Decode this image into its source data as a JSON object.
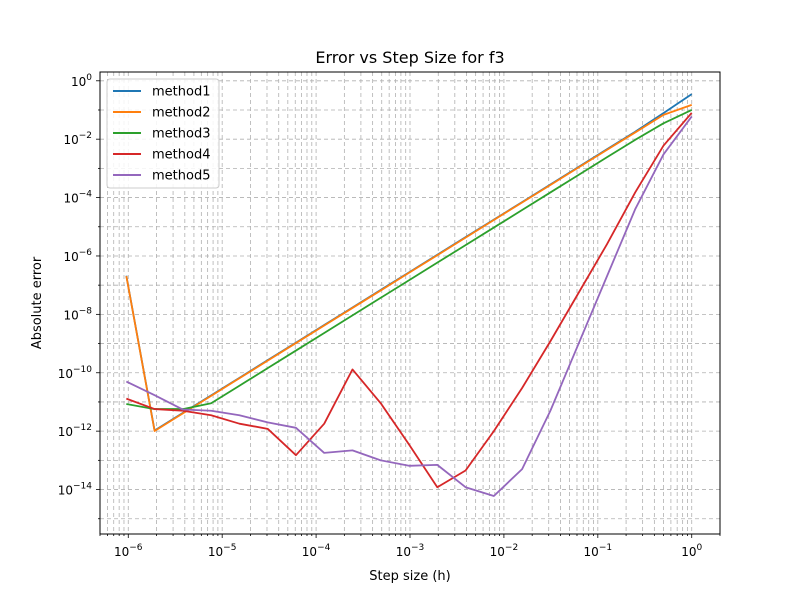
{
  "chart_data": {
    "type": "line",
    "title": "Error vs Step Size for f3",
    "xlabel": "Step size (h)",
    "ylabel": "Absolute error",
    "xscale": "log",
    "yscale": "log",
    "xlim": [
      5e-07,
      2
    ],
    "ylim": [
      3e-16,
      2
    ],
    "xticks": [
      {
        "value": 1e-06,
        "base": "10",
        "exp": "−6"
      },
      {
        "value": 1e-05,
        "base": "10",
        "exp": "−5"
      },
      {
        "value": 0.0001,
        "base": "10",
        "exp": "−4"
      },
      {
        "value": 0.001,
        "base": "10",
        "exp": "−3"
      },
      {
        "value": 0.01,
        "base": "10",
        "exp": "−2"
      },
      {
        "value": 0.1,
        "base": "10",
        "exp": "−1"
      },
      {
        "value": 1,
        "base": "10",
        "exp": "0"
      }
    ],
    "yticks": [
      {
        "value": 1e-14,
        "base": "10",
        "exp": "−14"
      },
      {
        "value": 1e-12,
        "base": "10",
        "exp": "−12"
      },
      {
        "value": 1e-10,
        "base": "10",
        "exp": "−10"
      },
      {
        "value": 1e-08,
        "base": "10",
        "exp": "−8"
      },
      {
        "value": 1e-06,
        "base": "10",
        "exp": "−6"
      },
      {
        "value": 0.0001,
        "base": "10",
        "exp": "−4"
      },
      {
        "value": 0.01,
        "base": "10",
        "exp": "−2"
      },
      {
        "value": 1,
        "base": "10",
        "exp": "0"
      }
    ],
    "grid": "both (major and minor), dashed",
    "legend_position": "upper-left",
    "x": [
      1,
      0.5,
      0.25,
      0.125,
      0.0625,
      0.03125,
      0.015625,
      0.0078125,
      0.00390625,
      0.001953125,
      0.0009765625,
      0.00048828125,
      0.000244140625,
      0.0001220703125,
      6.103515625e-05,
      3.0517578125e-05,
      1.52587890625e-05,
      7.62939453125e-06,
      3.814697265625e-06,
      1.9073486328125e-06,
      9.5367431640625e-07
    ],
    "series": [
      {
        "name": "method1",
        "color": "#1f77b4",
        "values": [
          0.35,
          0.078,
          0.018,
          0.0045,
          0.00112,
          0.00028,
          7e-05,
          1.75e-05,
          4.4e-06,
          1.1e-06,
          2.75e-07,
          6.9e-08,
          1.72e-08,
          4.3e-09,
          1.07e-09,
          2.7e-10,
          6.7e-11,
          1.68e-11,
          4.2e-12,
          1.05e-12,
          2.1e-07
        ]
      },
      {
        "name": "method2",
        "color": "#ff7f0e",
        "values": [
          0.15,
          0.068,
          0.017,
          0.0043,
          0.00108,
          0.00027,
          6.8e-05,
          1.7e-05,
          4.25e-06,
          1.06e-06,
          2.66e-07,
          6.6e-08,
          1.66e-08,
          4.15e-09,
          1.04e-09,
          2.6e-10,
          6.5e-11,
          1.62e-11,
          4.06e-12,
          1.01e-12,
          2.05e-07
        ]
      },
      {
        "name": "method3",
        "color": "#2ca02c",
        "values": [
          0.1,
          0.035,
          0.0095,
          0.0024,
          0.0006,
          0.00015,
          3.75e-05,
          9.4e-06,
          2.35e-06,
          5.9e-07,
          1.47e-07,
          3.7e-08,
          9.2e-09,
          2.3e-09,
          5.75e-10,
          1.44e-10,
          3.6e-11,
          9e-12,
          5.7e-12,
          5.7e-12,
          8.5e-12
        ]
      },
      {
        "name": "method4",
        "color": "#d62728",
        "values": [
          0.08,
          0.006,
          0.00015,
          2.5e-06,
          5.5e-08,
          1.2e-09,
          3e-11,
          1e-12,
          4.5e-14,
          1.2e-14,
          3.5e-13,
          9e-12,
          1.3e-10,
          1.8e-12,
          1.5e-13,
          1.2e-12,
          1.8e-12,
          3.5e-12,
          5e-12,
          5.7e-12,
          1.3e-11
        ]
      },
      {
        "name": "method5",
        "color": "#9467bd",
        "values": [
          0.06,
          0.003,
          4e-05,
          2e-07,
          1e-09,
          5e-12,
          5e-14,
          6e-15,
          1.2e-14,
          7e-14,
          6.5e-14,
          1e-13,
          2.2e-13,
          1.8e-13,
          1.3e-12,
          2e-12,
          3.5e-12,
          5e-12,
          5.5e-12,
          1.7e-11,
          5e-11
        ]
      }
    ]
  }
}
